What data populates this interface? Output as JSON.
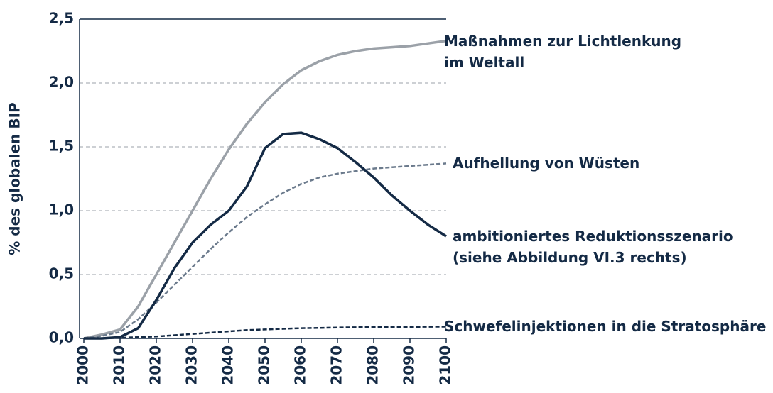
{
  "chart_data": {
    "type": "line",
    "y_label": "% des globalen BIP",
    "x": [
      2000,
      2005,
      2010,
      2015,
      2020,
      2025,
      2030,
      2035,
      2040,
      2045,
      2050,
      2055,
      2060,
      2065,
      2070,
      2075,
      2080,
      2085,
      2090,
      2095,
      2100
    ],
    "xlim": [
      2000,
      2100
    ],
    "xticks": [
      2000,
      2010,
      2020,
      2030,
      2040,
      2050,
      2060,
      2070,
      2080,
      2090,
      2100
    ],
    "ylim": [
      0,
      2.5
    ],
    "yticks": [
      {
        "value": 0,
        "label": "0,0"
      },
      {
        "value": 0.5,
        "label": "0,5"
      },
      {
        "value": 1,
        "label": "1,0"
      },
      {
        "value": 1.5,
        "label": "1,5"
      },
      {
        "value": 2,
        "label": "2,0"
      },
      {
        "value": 2.5,
        "label": "2,5"
      }
    ],
    "grid": true,
    "series": [
      {
        "name": "Maßnahmen zur Lichtlenkung\nim Weltall",
        "color": "#9ba1a8",
        "dashed": false,
        "values": [
          0,
          0.03,
          0.07,
          0.25,
          0.5,
          0.75,
          1.0,
          1.25,
          1.48,
          1.68,
          1.85,
          1.99,
          2.1,
          2.17,
          2.22,
          2.25,
          2.27,
          2.28,
          2.29,
          2.31,
          2.33
        ]
      },
      {
        "name": "Aufhellung von Wüsten",
        "color": "#6b7a8c",
        "dashed": true,
        "values": [
          0,
          0.02,
          0.05,
          0.15,
          0.28,
          0.42,
          0.56,
          0.7,
          0.83,
          0.95,
          1.05,
          1.14,
          1.21,
          1.26,
          1.29,
          1.31,
          1.33,
          1.34,
          1.35,
          1.36,
          1.37
        ]
      },
      {
        "name": "ambitioniertes Reduktionsszenario\n(siehe Abbildung VI.3 rechts)",
        "color": "#142a45",
        "dashed": false,
        "values": [
          0,
          0,
          0.01,
          0.08,
          0.3,
          0.55,
          0.75,
          0.89,
          1.0,
          1.19,
          1.49,
          1.6,
          1.61,
          1.56,
          1.49,
          1.38,
          1.26,
          1.12,
          1.0,
          0.89,
          0.8
        ]
      },
      {
        "name": "Schwefelinjektionen in die Stratosphäre",
        "color": "#142a45",
        "dashed": true,
        "values": [
          0,
          0,
          0.005,
          0.01,
          0.015,
          0.025,
          0.035,
          0.045,
          0.055,
          0.065,
          0.07,
          0.075,
          0.08,
          0.082,
          0.085,
          0.087,
          0.088,
          0.089,
          0.09,
          0.091,
          0.092
        ]
      }
    ]
  }
}
